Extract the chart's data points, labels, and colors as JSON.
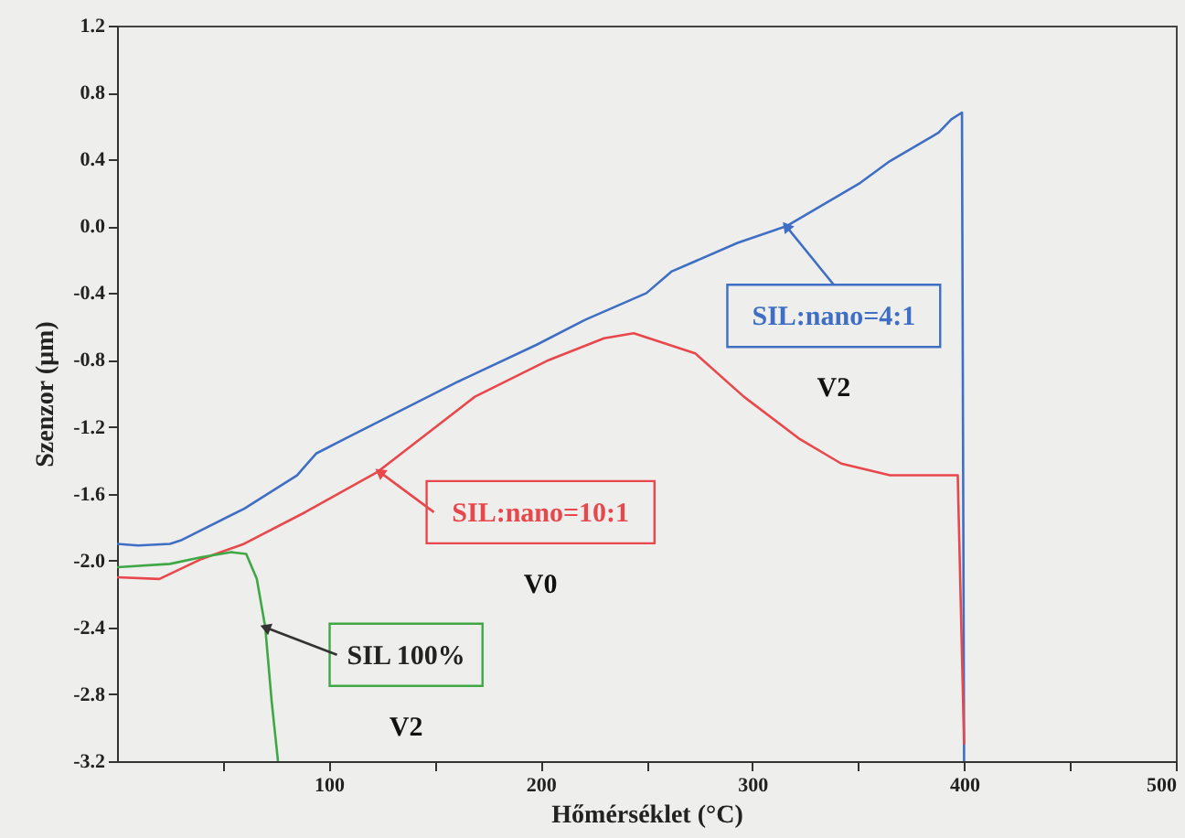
{
  "chart_data": {
    "type": "line",
    "xlabel": "Hőmérséklet  (°C)",
    "ylabel": "Szenzor  (µm)",
    "xlim": [
      0,
      500
    ],
    "ylim": [
      -3.2,
      1.2
    ],
    "xticks": [
      {
        "value": 50,
        "label": null
      },
      100,
      {
        "value": 150,
        "label": null
      },
      200,
      {
        "value": 250,
        "label": null
      },
      300,
      {
        "value": 350,
        "label": null
      },
      400,
      {
        "value": 450,
        "label": null
      },
      500
    ],
    "yticks": [
      -3.2,
      -2.8,
      -2.4,
      {
        "value": -2.0,
        "label": "-2.0"
      },
      -1.6,
      -1.2,
      -0.8,
      -0.4,
      {
        "value": 0.0,
        "label": "0.0"
      },
      0.4,
      0.8,
      1.2
    ],
    "grid": false,
    "marker": "none",
    "line_style": "solid",
    "series": [
      {
        "color": "#3f6fc4",
        "x": [
          0,
          10,
          25,
          30,
          60,
          85,
          94,
          111,
          161,
          198,
          221,
          250,
          262,
          293,
          316,
          351,
          365,
          388,
          394,
          399,
          400
        ],
        "values": [
          -1.9,
          -1.91,
          -1.9,
          -1.88,
          -1.69,
          -1.49,
          -1.36,
          -1.25,
          -0.93,
          -0.71,
          -0.56,
          -0.4,
          -0.27,
          -0.1,
          0.0,
          0.26,
          0.39,
          0.56,
          0.64,
          0.68,
          -3.2
        ]
      },
      {
        "color": "#e8484b",
        "x": [
          0,
          20,
          40,
          60,
          89,
          123,
          169,
          204,
          230,
          244,
          273,
          296,
          322,
          342,
          365,
          397,
          400
        ],
        "values": [
          -2.1,
          -2.11,
          -1.99,
          -1.9,
          -1.71,
          -1.47,
          -1.02,
          -0.8,
          -0.67,
          -0.64,
          -0.76,
          -1.02,
          -1.27,
          -1.42,
          -1.49,
          -1.49,
          -3.1
        ]
      },
      {
        "color": "#3fa845",
        "x": [
          0,
          25,
          40,
          54,
          61,
          66,
          70,
          73,
          76
        ],
        "values": [
          -2.04,
          -2.02,
          -1.98,
          -1.95,
          -1.96,
          -2.11,
          -2.4,
          -2.84,
          -3.2
        ]
      }
    ],
    "annotations": [
      {
        "text": "SIL:nano=4:1",
        "x": 316,
        "y": 0.0
      },
      "V2",
      {
        "text": "SIL:nano=10:1",
        "x": 124,
        "y": -1.47
      },
      "V0",
      {
        "text": "SIL 100%",
        "x": 70,
        "y": -2.4
      },
      "V2"
    ]
  }
}
